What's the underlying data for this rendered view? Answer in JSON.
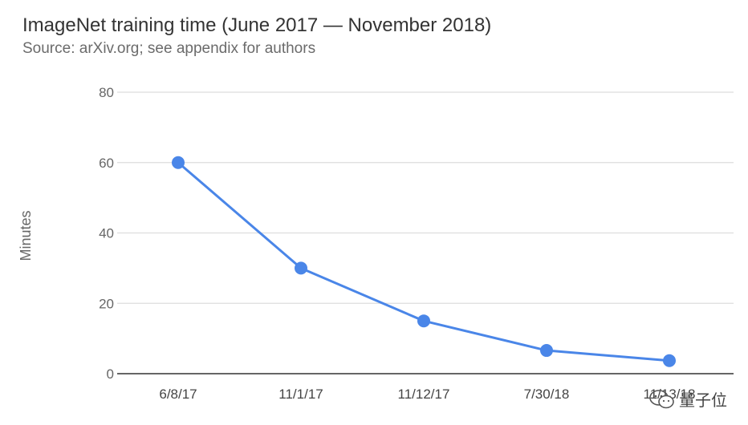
{
  "title": "ImageNet training time (June 2017 — November 2018)",
  "subtitle": "Source: arXiv.org; see appendix for authors",
  "watermark": "量子位",
  "chart_data": {
    "type": "line",
    "title": "ImageNet training time (June 2017 — November 2018)",
    "subtitle": "Source: arXiv.org; see appendix for authors",
    "xlabel": "",
    "ylabel": "Minutes",
    "categories": [
      "6/8/17",
      "11/1/17",
      "11/12/17",
      "7/30/18",
      "11/13/18"
    ],
    "series": [
      {
        "values": [
          60,
          30,
          15,
          6.6,
          3.7
        ]
      }
    ],
    "ylim": [
      0,
      80
    ],
    "yticks": [
      0,
      20,
      40,
      60,
      80
    ],
    "grid": true,
    "legend": "none",
    "colors": {
      "line": "#4a86e8",
      "grid": "#dddddd",
      "axis": "#666666"
    }
  }
}
